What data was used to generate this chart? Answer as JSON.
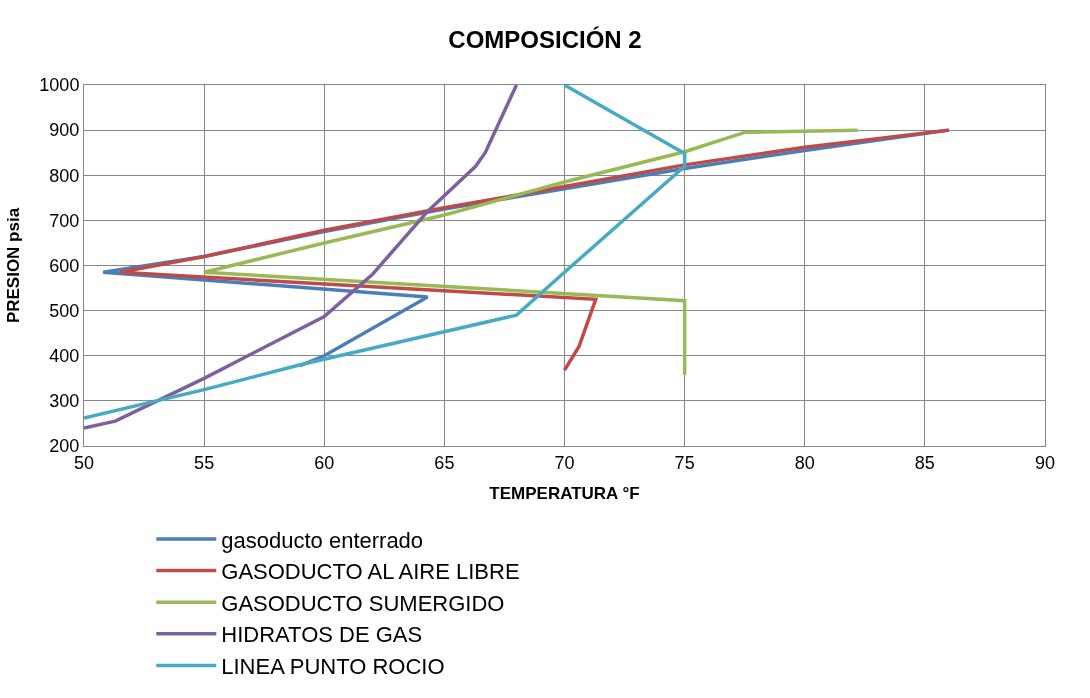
{
  "chart_data": {
    "type": "line",
    "title": "COMPOSICIÓN 2",
    "xlabel": "TEMPERATURA °F",
    "ylabel": "PRESION psia",
    "xlim": [
      50,
      90
    ],
    "xticks": [
      50,
      55,
      60,
      65,
      70,
      75,
      80,
      85,
      90
    ],
    "ylim": [
      200,
      1000
    ],
    "yticks": [
      200,
      300,
      400,
      500,
      600,
      700,
      800,
      900,
      1000
    ],
    "grid": true,
    "legend": "bottom",
    "marker": "none",
    "line_style": "solid",
    "series": [
      {
        "name": "gasoducto enterrado",
        "color": "#4a7ebb",
        "x": [
          59,
          60,
          64.3,
          50.8,
          55,
          60,
          65,
          70,
          75,
          80,
          86
        ],
        "values": [
          378,
          400,
          530,
          585,
          620,
          675,
          725,
          770,
          815,
          855,
          900
        ]
      },
      {
        "name": "GASODUCTO AL AIRE LIBRE",
        "color": "#be4b48",
        "x": [
          70,
          70.6,
          71.3,
          51.5,
          55,
          60,
          65,
          70,
          75,
          80,
          86
        ],
        "values": [
          368,
          420,
          525,
          585,
          620,
          678,
          728,
          775,
          823,
          862,
          900
        ]
      },
      {
        "name": "GASODUCTO SUMERGIDO",
        "color": "#98b954",
        "x": [
          75,
          75,
          75,
          55,
          60,
          65,
          70,
          75,
          77.5,
          82.2
        ],
        "values": [
          358,
          430,
          522,
          585,
          650,
          712,
          785,
          852,
          895,
          900
        ]
      },
      {
        "name": "HIDRATOS DE GAS",
        "color": "#7d60a0",
        "x": [
          50,
          51.3,
          55,
          60,
          62,
          64.3,
          66.3,
          66.7,
          68
        ],
        "values": [
          240,
          255,
          350,
          487,
          580,
          720,
          820,
          850,
          1000
        ]
      },
      {
        "name": "LINEA PUNTO ROCIO",
        "color": "#46aac5",
        "x": [
          50,
          55,
          59,
          68,
          70,
          75,
          75,
          70
        ],
        "values": [
          262,
          325,
          380,
          490,
          585,
          820,
          848,
          1000
        ]
      }
    ]
  }
}
